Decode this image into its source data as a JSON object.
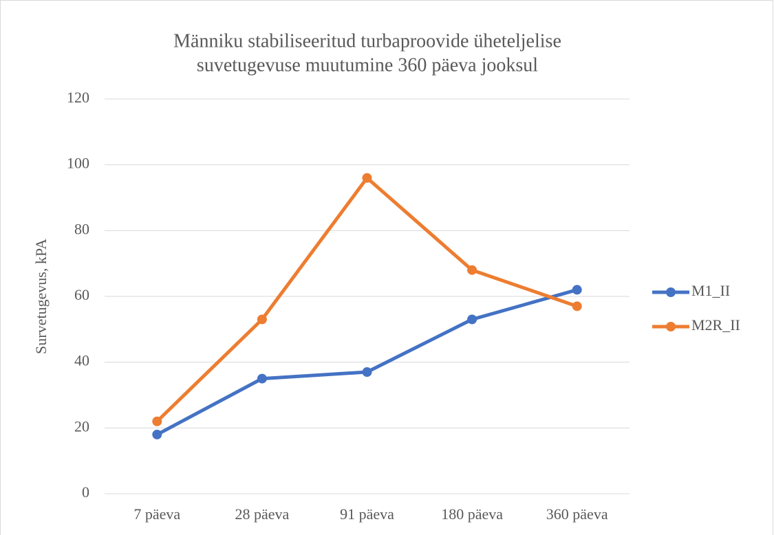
{
  "chart_data": {
    "type": "line",
    "title": [
      "Männiku stabiliseeritud turbaproovide üheteljelise",
      "suvetugevuse muutumine 360 päeva jooksul"
    ],
    "y_label": "Survetugevus, kPA",
    "categories": [
      "7 päeva",
      "28 päeva",
      "91 päeva",
      "180 päeva",
      "360 päeva"
    ],
    "series": [
      {
        "name": "M1_II",
        "color": "#4472c4",
        "values": [
          18,
          35,
          37,
          53,
          62
        ]
      },
      {
        "name": "M2R_II",
        "color": "#ed7d31",
        "values": [
          22,
          53,
          96,
          68,
          57
        ]
      }
    ],
    "ylim": [
      0,
      120
    ],
    "yticks": [
      0,
      20,
      40,
      60,
      80,
      100,
      120
    ],
    "grid": true,
    "legend": "right"
  }
}
